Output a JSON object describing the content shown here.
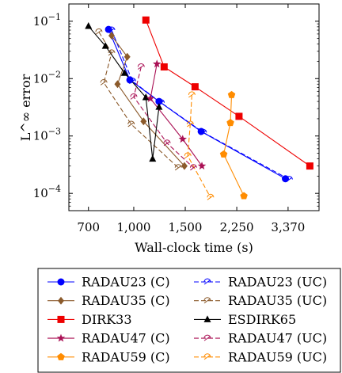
{
  "chart_data": {
    "type": "line",
    "xlabel": "Wall-clock time (s)",
    "ylabel": "L^∞ error",
    "xscale": "log",
    "yscale": "log",
    "xlim": [
      600,
      4300
    ],
    "ylim": [
      5e-05,
      0.2
    ],
    "xticks": [
      700,
      1000,
      1500,
      2250,
      3370
    ],
    "xtick_labels": [
      "700",
      "1,000",
      "1,500",
      "2,250",
      "3,370"
    ],
    "ytick_labels": [
      {
        "value": 0.1,
        "base": "10",
        "exp": "−1"
      },
      {
        "value": 0.01,
        "base": "10",
        "exp": "−2"
      },
      {
        "value": 0.001,
        "base": "10",
        "exp": "−3"
      },
      {
        "value": 0.0001,
        "base": "10",
        "exp": "−4"
      }
    ],
    "legend_position": "bottom",
    "series": [
      {
        "name": "RADAU23 (C)",
        "color": "#0000ff",
        "dash": "",
        "marker": "circle",
        "x": [
          820,
          970,
          1220,
          1700,
          3300
        ],
        "y": [
          0.072,
          0.0095,
          0.004,
          0.0012,
          0.00018
        ]
      },
      {
        "name": "RADAU23 (UC)",
        "color": "#0000ff",
        "dash": "6,3",
        "marker": "halfcircle",
        "x": [
          840,
          990,
          1240,
          1730,
          3400
        ],
        "y": [
          0.07,
          0.009,
          0.0038,
          0.00115,
          0.000175
        ]
      },
      {
        "name": "RADAU35 (C)",
        "color": "#8b5a2b",
        "dash": "",
        "marker": "diamond",
        "x": [
          840,
          950,
          880,
          1080,
          1490
        ],
        "y": [
          0.056,
          0.024,
          0.008,
          0.0018,
          0.0003
        ]
      },
      {
        "name": "RADAU35 (UC)",
        "color": "#8b5a2b",
        "dash": "6,3",
        "marker": "halfcircle",
        "x": [
          760,
          840,
          790,
          980,
          1420
        ],
        "y": [
          0.065,
          0.028,
          0.0085,
          0.0016,
          0.00028
        ]
      },
      {
        "name": "DIRK33",
        "color": "#ee0000",
        "dash": "",
        "marker": "square",
        "x": [
          1100,
          1270,
          1620,
          2290,
          4000
        ],
        "y": [
          0.105,
          0.016,
          0.0072,
          0.0022,
          0.0003
        ]
      },
      {
        "name": "ESDIRK65",
        "color": "#000000",
        "dash": "",
        "marker": "triangle",
        "x": [
          700,
          800,
          930,
          1100,
          1160,
          1220
        ],
        "y": [
          0.082,
          0.037,
          0.0125,
          0.0047,
          0.0004,
          0.0032
        ]
      },
      {
        "name": "RADAU47 (C)",
        "color": "#aa1155",
        "dash": "",
        "marker": "star",
        "x": [
          1200,
          1140,
          1470,
          1710
        ],
        "y": [
          0.018,
          0.0045,
          0.00088,
          0.0003
        ]
      },
      {
        "name": "RADAU47 (UC)",
        "color": "#aa1155",
        "dash": "6,3",
        "marker": "halfcircle",
        "x": [
          1060,
          1000,
          1300,
          1600
        ],
        "y": [
          0.016,
          0.0048,
          0.00075,
          0.00028
        ]
      },
      {
        "name": "RADAU59 (C)",
        "color": "#ff8c00",
        "dash": "",
        "marker": "pentagon",
        "x": [
          2160,
          2140,
          2030,
          2380
        ],
        "y": [
          0.0052,
          0.0017,
          0.00048,
          9e-05
        ]
      },
      {
        "name": "RADAU59 (UC)",
        "color": "#ff8c00",
        "dash": "6,3",
        "marker": "halfcircle",
        "x": [
          1580,
          1560,
          1530,
          1830
        ],
        "y": [
          0.0052,
          0.0016,
          0.00045,
          8.5e-05
        ]
      }
    ]
  }
}
